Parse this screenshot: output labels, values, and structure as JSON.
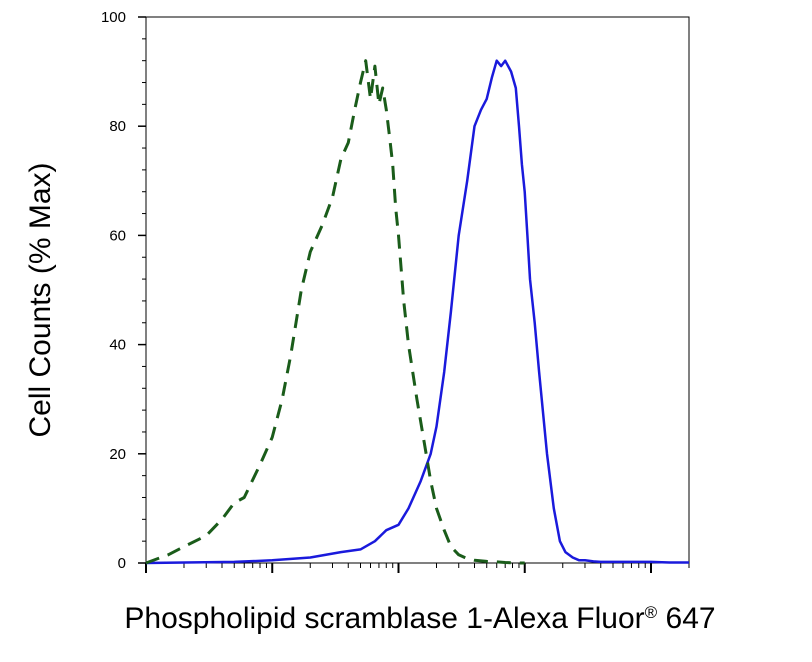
{
  "chart_data": {
    "type": "line",
    "xlabel": "Phospholipid scramblase 1-Alexa Fluor",
    "xlabel_mark": "®",
    "xlabel_suffix": " 647",
    "ylabel": "Cell Counts (% Max)",
    "xscale": "log",
    "xlim": [
      1,
      20000
    ],
    "ylim": [
      0,
      100
    ],
    "yticks": [
      0,
      20,
      40,
      60,
      80,
      100
    ],
    "grid": false,
    "legend": "none",
    "series": [
      {
        "color": "#1a1adc",
        "style": "solid",
        "x": [
          1,
          5,
          10,
          20,
          35,
          50,
          65,
          80,
          100,
          120,
          150,
          180,
          200,
          230,
          260,
          300,
          350,
          400,
          450,
          500,
          550,
          600,
          650,
          700,
          780,
          850,
          900,
          950,
          1000,
          1050,
          1100,
          1200,
          1300,
          1500,
          1700,
          1900,
          2100,
          2400,
          2700,
          3000,
          3500,
          4000,
          5000,
          7000,
          10000,
          14000,
          20000
        ],
        "y": [
          0,
          0.2,
          0.5,
          1,
          2,
          2.5,
          4,
          6,
          7,
          10,
          15,
          20,
          25,
          35,
          46,
          60,
          70,
          80,
          83,
          85,
          89,
          92,
          91,
          92,
          90,
          87,
          80,
          73,
          68,
          60,
          52,
          44,
          35,
          20,
          10,
          4,
          2,
          1,
          0.5,
          0.5,
          0.3,
          0.2,
          0.2,
          0.2,
          0.2,
          0.1,
          0.1
        ]
      },
      {
        "color": "#1a5c1a",
        "style": "dashed",
        "x": [
          1,
          1.5,
          2,
          3,
          4,
          5,
          6,
          8,
          10,
          12,
          14,
          17,
          20,
          25,
          30,
          35,
          40,
          45,
          50,
          55,
          60,
          65,
          70,
          75,
          80,
          85,
          90,
          95,
          100,
          110,
          120,
          140,
          160,
          180,
          200,
          230,
          260,
          300,
          350,
          400,
          500,
          600,
          700,
          850,
          1000
        ],
        "y": [
          0,
          1.5,
          3,
          5,
          8,
          11,
          12,
          18,
          23,
          30,
          38,
          50,
          57,
          62,
          67,
          74,
          77,
          83,
          88,
          92,
          85,
          91,
          84,
          87,
          83,
          78,
          73,
          65,
          60,
          48,
          40,
          30,
          22,
          15,
          10,
          6,
          3,
          1.5,
          0.8,
          0.5,
          0.3,
          0.2,
          0.1,
          0,
          0
        ]
      }
    ]
  }
}
